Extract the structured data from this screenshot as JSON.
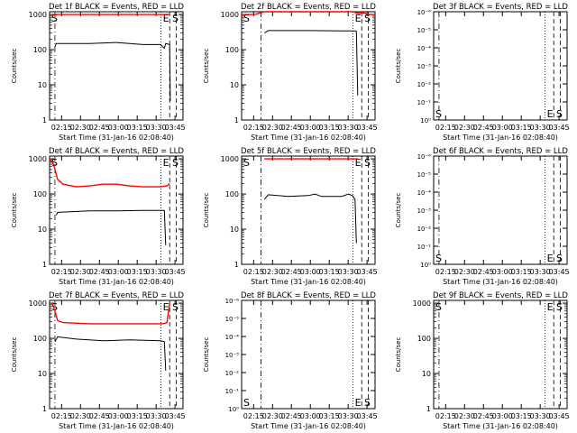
{
  "chart_data": [
    {
      "type": "line",
      "title": "Det 1f BLACK = Events, RED = LLD",
      "ylabel": "Counts/sec",
      "xlabel": "Start Time (31-Jan-16 02:08:40)",
      "x_ticks": [
        "02:15",
        "02:30",
        "02:45",
        "03:00",
        "03:15",
        "03:30",
        "03:45"
      ],
      "y_ticks": [
        "1",
        "10",
        "100",
        "1000"
      ],
      "y_scale": "log",
      "ylim": [
        1,
        1200
      ],
      "left_marker": "S",
      "right_marker": "E S",
      "series": [
        {
          "color": "#ff0000",
          "points": [
            [
              0.02,
              1000
            ],
            [
              0.12,
              1000
            ],
            [
              0.5,
              1000
            ],
            [
              0.85,
              1000
            ],
            [
              0.9,
              1000
            ]
          ]
        },
        {
          "color": "#000000",
          "points": [
            [
              0.04,
              120
            ],
            [
              0.05,
              150
            ],
            [
              0.3,
              150
            ],
            [
              0.5,
              160
            ],
            [
              0.7,
              140
            ],
            [
              0.83,
              140
            ],
            [
              0.86,
              110
            ],
            [
              0.87,
              150
            ],
            [
              0.9,
              140
            ],
            [
              0.905,
              3.5
            ]
          ]
        }
      ]
    },
    {
      "type": "line",
      "title": "Det 2f BLACK = Events, RED = LLD",
      "ylabel": "Counts/sec",
      "xlabel": "Start Time (31-Jan-16 02:08:40)",
      "x_ticks": [
        "02:15",
        "02:30",
        "02:45",
        "03:00",
        "03:15",
        "03:30",
        "03:45"
      ],
      "y_ticks": [
        "1",
        "10",
        "100",
        "1000"
      ],
      "y_scale": "log",
      "ylim": [
        1,
        1200
      ],
      "left_marker": "S",
      "right_marker": "E S",
      "series": [
        {
          "color": "#ff0000",
          "points": [
            [
              0.0,
              1000
            ],
            [
              0.1,
              1000
            ],
            [
              0.17,
              1200
            ],
            [
              0.2,
              1200
            ],
            [
              0.5,
              1200
            ],
            [
              0.84,
              1200
            ],
            [
              0.86,
              1100
            ],
            [
              0.92,
              1100
            ],
            [
              0.95,
              1000
            ],
            [
              1.0,
              1000
            ]
          ]
        },
        {
          "color": "#000000",
          "points": [
            [
              0.17,
              300
            ],
            [
              0.2,
              350
            ],
            [
              0.5,
              350
            ],
            [
              0.85,
              340
            ],
            [
              0.86,
              330
            ],
            [
              0.87,
              5
            ]
          ]
        }
      ]
    },
    {
      "type": "line",
      "title": "Det 3f BLACK = Events, RED = LLD",
      "ylabel": "Counts/sec",
      "xlabel": "Start Time (31-Jan-16 02:08:40)",
      "x_ticks": [
        "02:15",
        "02:30",
        "02:45",
        "03:00",
        "03:15",
        "03:30",
        "03:45"
      ],
      "y_ticks": [
        "10⁰",
        "10⁻¹",
        "10⁻²",
        "10⁻³",
        "10⁻⁴",
        "10⁻⁵",
        "10⁻⁶"
      ],
      "y_scale": "linear",
      "left_marker": "S",
      "right_marker": "E S",
      "series": []
    },
    {
      "type": "line",
      "title": "Det 4f BLACK = Events, RED = LLD",
      "ylabel": "Counts/sec",
      "xlabel": "Start Time (31-Jan-16 02:08:40)",
      "x_ticks": [
        "02:15",
        "02:30",
        "02:45",
        "03:00",
        "03:15",
        "03:30",
        "03:45"
      ],
      "y_ticks": [
        "1",
        "10",
        "100",
        "1000"
      ],
      "y_scale": "log",
      "ylim": [
        1,
        1200
      ],
      "left_marker": "S",
      "right_marker": "E S",
      "series": [
        {
          "color": "#ff0000",
          "points": [
            [
              0.0,
              1000
            ],
            [
              0.03,
              700
            ],
            [
              0.06,
              260
            ],
            [
              0.1,
              190
            ],
            [
              0.2,
              160
            ],
            [
              0.3,
              170
            ],
            [
              0.4,
              190
            ],
            [
              0.5,
              190
            ],
            [
              0.6,
              170
            ],
            [
              0.7,
              160
            ],
            [
              0.83,
              160
            ],
            [
              0.88,
              170
            ],
            [
              0.9,
              200
            ]
          ]
        },
        {
          "color": "#000000",
          "points": [
            [
              0.05,
              25
            ],
            [
              0.06,
              30
            ],
            [
              0.3,
              33
            ],
            [
              0.5,
              33
            ],
            [
              0.7,
              34
            ],
            [
              0.86,
              34
            ],
            [
              0.87,
              3.5
            ]
          ]
        }
      ]
    },
    {
      "type": "line",
      "title": "Det 5f BLACK = Events, RED = LLD",
      "ylabel": "Counts/sec",
      "xlabel": "Start Time (31-Jan-16 02:08:40)",
      "x_ticks": [
        "02:15",
        "02:30",
        "02:45",
        "03:00",
        "03:15",
        "03:30",
        "03:45"
      ],
      "y_ticks": [
        "1",
        "10",
        "100",
        "1000"
      ],
      "y_scale": "log",
      "ylim": [
        1,
        1200
      ],
      "left_marker": "S",
      "right_marker": "E S",
      "series": [
        {
          "color": "#ff0000",
          "points": [
            [
              0.17,
              1000
            ],
            [
              0.5,
              1000
            ],
            [
              0.8,
              1000
            ],
            [
              0.87,
              1000
            ]
          ]
        },
        {
          "color": "#000000",
          "points": [
            [
              0.17,
              70
            ],
            [
              0.2,
              95
            ],
            [
              0.35,
              85
            ],
            [
              0.5,
              90
            ],
            [
              0.55,
              100
            ],
            [
              0.6,
              85
            ],
            [
              0.75,
              85
            ],
            [
              0.8,
              100
            ],
            [
              0.83,
              90
            ],
            [
              0.85,
              70
            ],
            [
              0.86,
              4
            ]
          ]
        }
      ]
    },
    {
      "type": "line",
      "title": "Det 6f BLACK = Events, RED = LLD",
      "ylabel": "Counts/sec",
      "xlabel": "Start Time (31-Jan-16 02:08:40)",
      "x_ticks": [
        "02:15",
        "02:30",
        "02:45",
        "03:00",
        "03:15",
        "03:30",
        "03:45"
      ],
      "y_ticks": [
        "10⁰",
        "10⁻¹",
        "10⁻²",
        "10⁻³",
        "10⁻⁴",
        "10⁻⁵",
        "10⁻⁶"
      ],
      "y_scale": "linear",
      "left_marker": "S",
      "right_marker": "E S",
      "series": []
    },
    {
      "type": "line",
      "title": "Det 7f BLACK = Events, RED = LLD",
      "ylabel": "Counts/sec",
      "xlabel": "Start Time (31-Jan-16 02:08:40)",
      "x_ticks": [
        "02:15",
        "02:30",
        "02:45",
        "03:00",
        "03:15",
        "03:30",
        "03:45"
      ],
      "y_ticks": [
        "1",
        "10",
        "100",
        "1000"
      ],
      "y_scale": "log",
      "ylim": [
        1,
        1200
      ],
      "left_marker": "S",
      "right_marker": "E S",
      "series": [
        {
          "color": "#ff0000",
          "points": [
            [
              0.02,
              1000
            ],
            [
              0.04,
              600
            ],
            [
              0.06,
              320
            ],
            [
              0.1,
              280
            ],
            [
              0.3,
              260
            ],
            [
              0.5,
              260
            ],
            [
              0.7,
              260
            ],
            [
              0.85,
              260
            ],
            [
              0.88,
              280
            ],
            [
              0.9,
              1000
            ]
          ]
        },
        {
          "color": "#000000",
          "points": [
            [
              0.04,
              80
            ],
            [
              0.06,
              110
            ],
            [
              0.2,
              95
            ],
            [
              0.4,
              85
            ],
            [
              0.6,
              90
            ],
            [
              0.83,
              85
            ],
            [
              0.86,
              80
            ],
            [
              0.87,
              12
            ]
          ]
        }
      ]
    },
    {
      "type": "line",
      "title": "Det 8f BLACK = Events, RED = LLD",
      "ylabel": "Counts/sec",
      "xlabel": "Start Time (31-Jan-16 02:08:40)",
      "x_ticks": [
        "02:15",
        "02:30",
        "02:45",
        "03:00",
        "03:15",
        "03:30",
        "03:45"
      ],
      "y_ticks": [
        "10⁰",
        "10⁻¹",
        "10⁻²",
        "10⁻³",
        "10⁻⁴",
        "10⁻⁵",
        "10⁻⁶"
      ],
      "y_scale": "linear",
      "left_marker": "S",
      "right_marker": "E S",
      "series": []
    },
    {
      "type": "line",
      "title": "Det 9f BLACK = Events, RED = LLD",
      "ylabel": "Counts/sec",
      "xlabel": "Start Time (31-Jan-16 02:08:40)",
      "x_ticks": [
        "02:15",
        "02:30",
        "02:45",
        "03:00",
        "03:15",
        "03:30",
        "03:45"
      ],
      "y_ticks": [
        "1",
        "10",
        "100",
        "1000"
      ],
      "y_scale": "log",
      "ylim": [
        1,
        1200
      ],
      "left_marker": "S",
      "right_marker": "E S",
      "series": []
    }
  ]
}
